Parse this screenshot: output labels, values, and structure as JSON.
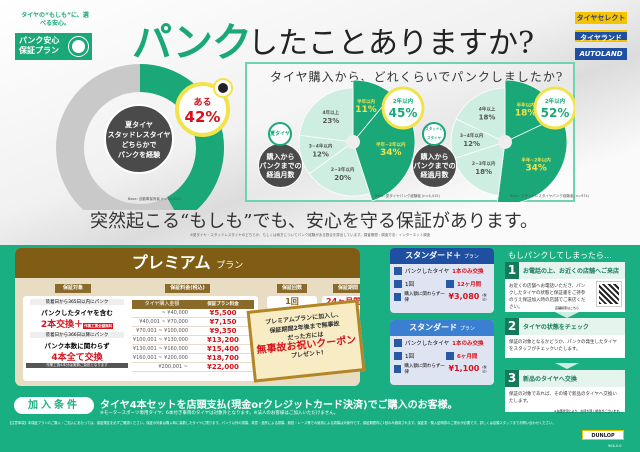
{
  "logo": {
    "tagline": "タイヤの“もしも”に、選べる安心。",
    "name_line1": "パンク安心",
    "name_line2": "保証プラン"
  },
  "title": {
    "highlight": "パンク",
    "rest": "したことありますか?"
  },
  "brands": [
    "タイヤセレクト",
    "タイヤランド",
    "AUTOLAND"
  ],
  "overall": {
    "center_text": [
      "夏タイヤ",
      "スタッドレスタイヤ",
      "どちらかで",
      "パンクを経験"
    ],
    "badge_label": "ある",
    "badge_value": "42%",
    "percent": 42,
    "base": "Base: 自動車保有者 (n=15,000)"
  },
  "question": "タイヤ購入から、どれくらいでパンクしましたか?",
  "chart_data": [
    {
      "type": "pie",
      "tag": "夏タイヤ",
      "center": [
        "購入から",
        "パンクまでの",
        "経過月数"
      ],
      "categories": [
        "半年以内",
        "半年~2年以内",
        "2~3年以内",
        "3~4年以内",
        "4年以上"
      ],
      "values": [
        11,
        34,
        20,
        12,
        23
      ],
      "labels": [
        "11%",
        "34%",
        "20%",
        "12%",
        "23%"
      ],
      "callout_label": "2年以内",
      "callout_value": "45%",
      "base": "Base: 夏タイヤパンク経験者 (n=4,415)"
    },
    {
      "type": "pie",
      "tag": "スタッドレスタイヤ",
      "center": [
        "購入から",
        "パンクまでの",
        "経過月数"
      ],
      "categories": [
        "半年以内",
        "半年~2年以内",
        "2~3年以内",
        "3~4年以内",
        "4年以上"
      ],
      "values": [
        18,
        34,
        18,
        12,
        18
      ],
      "labels": [
        "18%",
        "34%",
        "18%",
        "12%",
        "18%"
      ],
      "callout_label": "2年以内",
      "callout_value": "52%",
      "base": "Base: スタッドレスタイヤパンク経験者 (n=974)"
    }
  ],
  "colors": {
    "green": "#1aa879",
    "green_light": "#cdeee0",
    "brown": "#7f5d14",
    "red": "#d7121c",
    "yellow": "#f2e34a",
    "blue": "#2859a6"
  },
  "tagline": "突然起こる“もしも”でも、安心を守る保証があります。",
  "footnote": "※夏タイヤ・スタッドレスタイヤのどちらか、もしくは両方についてパンク経験がある割合を算出しています。調査期間・調査方法：インターネット調査",
  "premium": {
    "title": "プレミアム",
    "suffix": "プラン",
    "coverage_label": "保証対象",
    "coverage1_note": "装着日から365日以内にパンク",
    "coverage1_main": "パンクしたタイヤを含む",
    "coverage1_big": "2本交換＋",
    "coverage1_badge": "作業工賃全額無料",
    "coverage2_note": "装着日から366日以降にパンク",
    "coverage2_main": "パンク本数に関わらず",
    "coverage2_big": "4本全て交換",
    "coverage2_foot": "作業工賃4本分は実費ご負担となります",
    "fee_label": "保証料金(税込)",
    "fee_headers": [
      "タイヤ購入金額",
      "保証プラン料金"
    ],
    "fee_rows": [
      [
        "~ ¥40,000",
        "¥5,500"
      ],
      [
        "¥40,001 ~ ¥70,000",
        "¥7,150"
      ],
      [
        "¥70,001 ~ ¥100,000",
        "¥9,350"
      ],
      [
        "¥100,001 ~ ¥130,000",
        "¥13,200"
      ],
      [
        "¥130,001 ~ ¥160,000",
        "¥15,400"
      ],
      [
        "¥160,001 ~ ¥200,000",
        "¥18,700"
      ],
      [
        "¥200,001 ~",
        "¥22,000"
      ]
    ],
    "count_label": "保証回数",
    "count_value": "1回",
    "period_label": "保証期間",
    "period_value": "24ヶ月間",
    "coupon": {
      "line1": "プレミアムプランに加入し、",
      "line2": "保証期間2年後まで無事故",
      "line3": "だった方には",
      "big": "無事故お祝いクーポン",
      "line4": "プレゼント!"
    }
  },
  "standard_plus": {
    "title": "スタンダード＋",
    "suffix": "プラン",
    "coverage": "パンクしたタイヤ",
    "coverage_red": "1本のみ交換",
    "count": "1回",
    "period": "12ヶ月間",
    "fee_text": "購入額に関わらず一律",
    "fee": "¥3,080",
    "tax": "(税込)"
  },
  "standard": {
    "title": "スタンダード",
    "suffix": "プラン",
    "coverage": "パンクしたタイヤ",
    "coverage_red": "1本のみ交換",
    "count": "1回",
    "period": "6ヶ月間",
    "fee_text": "購入額に関わらず一律",
    "fee": "¥1,100",
    "tax": "(税込)"
  },
  "steps": {
    "title": "もしパンクしてしまったら…",
    "items": [
      {
        "num": "1",
        "title": "お電話の上、お近くの店舗へご来店",
        "body": "お近くの店舗へお電話いただき、パンクしたタイヤの状態と保証書をご持参のうえ保証加入時の店舗でご来店ください。",
        "note": "店舗検索はこちら"
      },
      {
        "num": "2",
        "title": "タイヤの状態をチェック",
        "body": "保証の対象となるかどうか、パンクの発生したタイヤをスタッフがチェックいたします。"
      },
      {
        "num": "3",
        "title": "新品のタイヤへ交換",
        "body": "保証の対象であれば、その場で新品のタイヤへ交換いたします。",
        "note": "※在庫状況により、お待ち頂く場合がございます。"
      }
    ]
  },
  "join": {
    "label": "加入条件",
    "text": "タイヤ4本セットを店頭支払(現金orクレジットカード決済)でご購入のお客様。",
    "note": "※モータースポーツ専用タイヤ、6本付き車両のタイヤは対象外となります。※法人のお客様はご加入いただけません。"
  },
  "fine_print": "【注意事項】本保証プランのご購入・ご加入にあたっては、保証規定を必ずご確認ください。保証の対象は購入時に装着したタイヤに限ります。パンク以外の損傷、故意・過失による損傷、競技・レース等での使用による損傷は対象外です。保証期間内に1回のみ適用されます。保証書・購入証明書のご提示が必要です。詳しくは店頭スタッフまでお問い合わせください。",
  "dunlop": "DUNLOP",
  "code": "904-0.0"
}
